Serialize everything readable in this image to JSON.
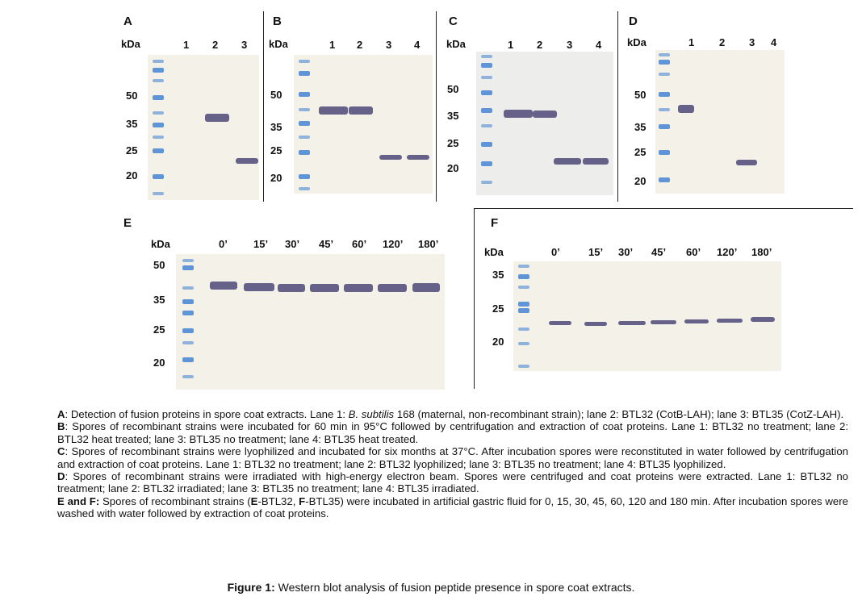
{
  "panels": {
    "A": {
      "letter": "A",
      "kda": "kDa",
      "lanes": [
        "1",
        "2",
        "3"
      ],
      "ticks": [
        "50",
        "35",
        "25",
        "20"
      ]
    },
    "B": {
      "letter": "B",
      "kda": "kDa",
      "lanes": [
        "1",
        "2",
        "3",
        "4"
      ],
      "ticks": [
        "50",
        "35",
        "25",
        "20"
      ]
    },
    "C": {
      "letter": "C",
      "kda": "kDa",
      "lanes": [
        "1",
        "2",
        "3",
        "4"
      ],
      "ticks": [
        "50",
        "35",
        "25",
        "20"
      ]
    },
    "D": {
      "letter": "D",
      "kda": "kDa",
      "lanes": [
        "1",
        "2",
        "3",
        "4"
      ],
      "ticks": [
        "50",
        "35",
        "25",
        "20"
      ]
    },
    "E": {
      "letter": "E",
      "kda": "kDa",
      "lanes": [
        "0’",
        "15’",
        "30’",
        "45’",
        "60’",
        "120’",
        "180’"
      ],
      "ticks": [
        "50",
        "35",
        "25",
        "20"
      ]
    },
    "F": {
      "letter": "F",
      "kda": "kDa",
      "lanes": [
        "0’",
        "15’",
        "30’",
        "45’",
        "60’",
        "120’",
        "180’"
      ],
      "ticks": [
        "35",
        "25",
        "20"
      ]
    }
  },
  "caption": {
    "a_label": "A",
    "a_text1": ": Detection of fusion proteins in spore coat extracts. Lane 1: ",
    "a_italic": "B. subtilis",
    "a_text2": " 168 (maternal, non-recombinant strain); lane 2: BTL32 (CotB-LAH); lane 3: BTL35 (CotZ-LAH).",
    "b_label": "B",
    "b_text": ": Spores of recombinant strains were incubated for 60 min in 95°C followed by centrifugation and extraction of coat proteins. Lane 1: BTL32 no treatment; lane 2: BTL32 heat treated; lane 3: BTL35 no treatment; lane 4: BTL35 heat treated.",
    "c_label": "C",
    "c_text": ": Spores of recombinant strains were lyophilized and incubated for six months at 37°C. After incubation spores were reconstituted in water followed by centrifugation and extraction of coat proteins. Lane 1: BTL32 no treatment; lane 2: BTL32 lyophilized; lane 3: BTL35 no treatment; lane 4: BTL35 lyophilized.",
    "d_label": "D",
    "d_text": ": Spores of recombinant strains were irradiated with high-energy electron beam. Spores were centrifuged and coat proteins were extracted. Lane 1: BTL32 no treatment; lane 2: BTL32 irradiated; lane 3: BTL35 no treatment; lane 4: BTL35 irradiated.",
    "ef_label": "E and F:",
    "ef_text1": " Spores of recombinant strains (",
    "ef_e": "E",
    "ef_text2": "-BTL32, ",
    "ef_f": "F",
    "ef_text3": "-BTL35) were incubated in artificial gastric fluid for 0, 15, 30, 45, 60, 120 and 180 min. After incubation spores were washed with water followed by extraction of coat proteins."
  },
  "figure": {
    "label": "Figure 1:",
    "title": " Western blot analysis of fusion peptide presence in spore coat extracts."
  }
}
